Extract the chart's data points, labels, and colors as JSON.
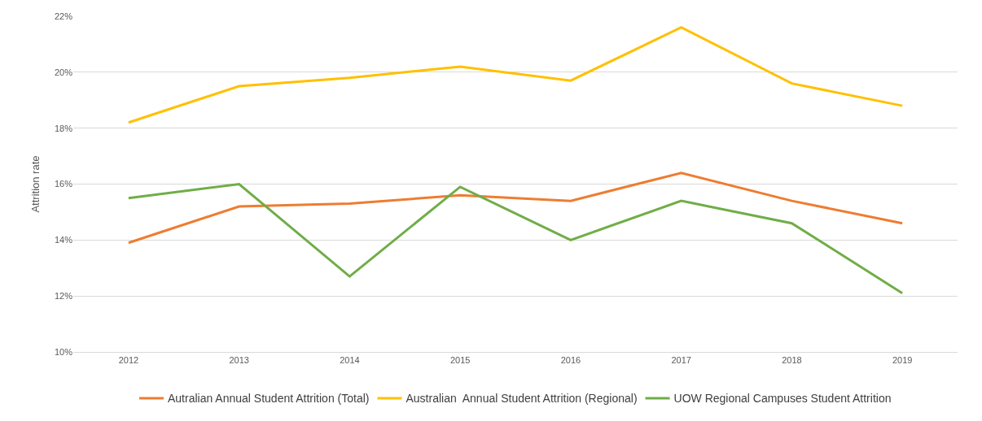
{
  "chart_data": {
    "type": "line",
    "ylabel": "Attrition rate",
    "categories": [
      "2012",
      "2013",
      "2014",
      "2015",
      "2016",
      "2017",
      "2018",
      "2019"
    ],
    "series": [
      {
        "name": "Autralian Annual Student Attrition (Total)",
        "color": "#ed7d31",
        "values": [
          13.9,
          15.2,
          15.3,
          15.6,
          15.4,
          16.4,
          15.4,
          14.6
        ]
      },
      {
        "name": "Australian  Annual Student Attrition (Regional)",
        "color": "#ffc000",
        "values": [
          18.2,
          19.5,
          19.8,
          20.2,
          19.7,
          21.6,
          19.6,
          18.8
        ]
      },
      {
        "name": "UOW Regional Campuses Student Attrition",
        "color": "#70ad47",
        "values": [
          15.5,
          16.0,
          12.7,
          15.9,
          14.0,
          15.4,
          14.6,
          12.1
        ]
      }
    ],
    "ylim": [
      10,
      22
    ],
    "yticks": [
      {
        "value": 10,
        "label": "10%"
      },
      {
        "value": 12,
        "label": "12%"
      },
      {
        "value": 14,
        "label": "14%"
      },
      {
        "value": 16,
        "label": "16%"
      },
      {
        "value": 18,
        "label": "18%"
      },
      {
        "value": 20,
        "label": "20%"
      },
      {
        "value": 22,
        "label": "22%"
      }
    ],
    "grid": "y",
    "legend": "bottom",
    "marker": "none",
    "line_style": "solid"
  }
}
